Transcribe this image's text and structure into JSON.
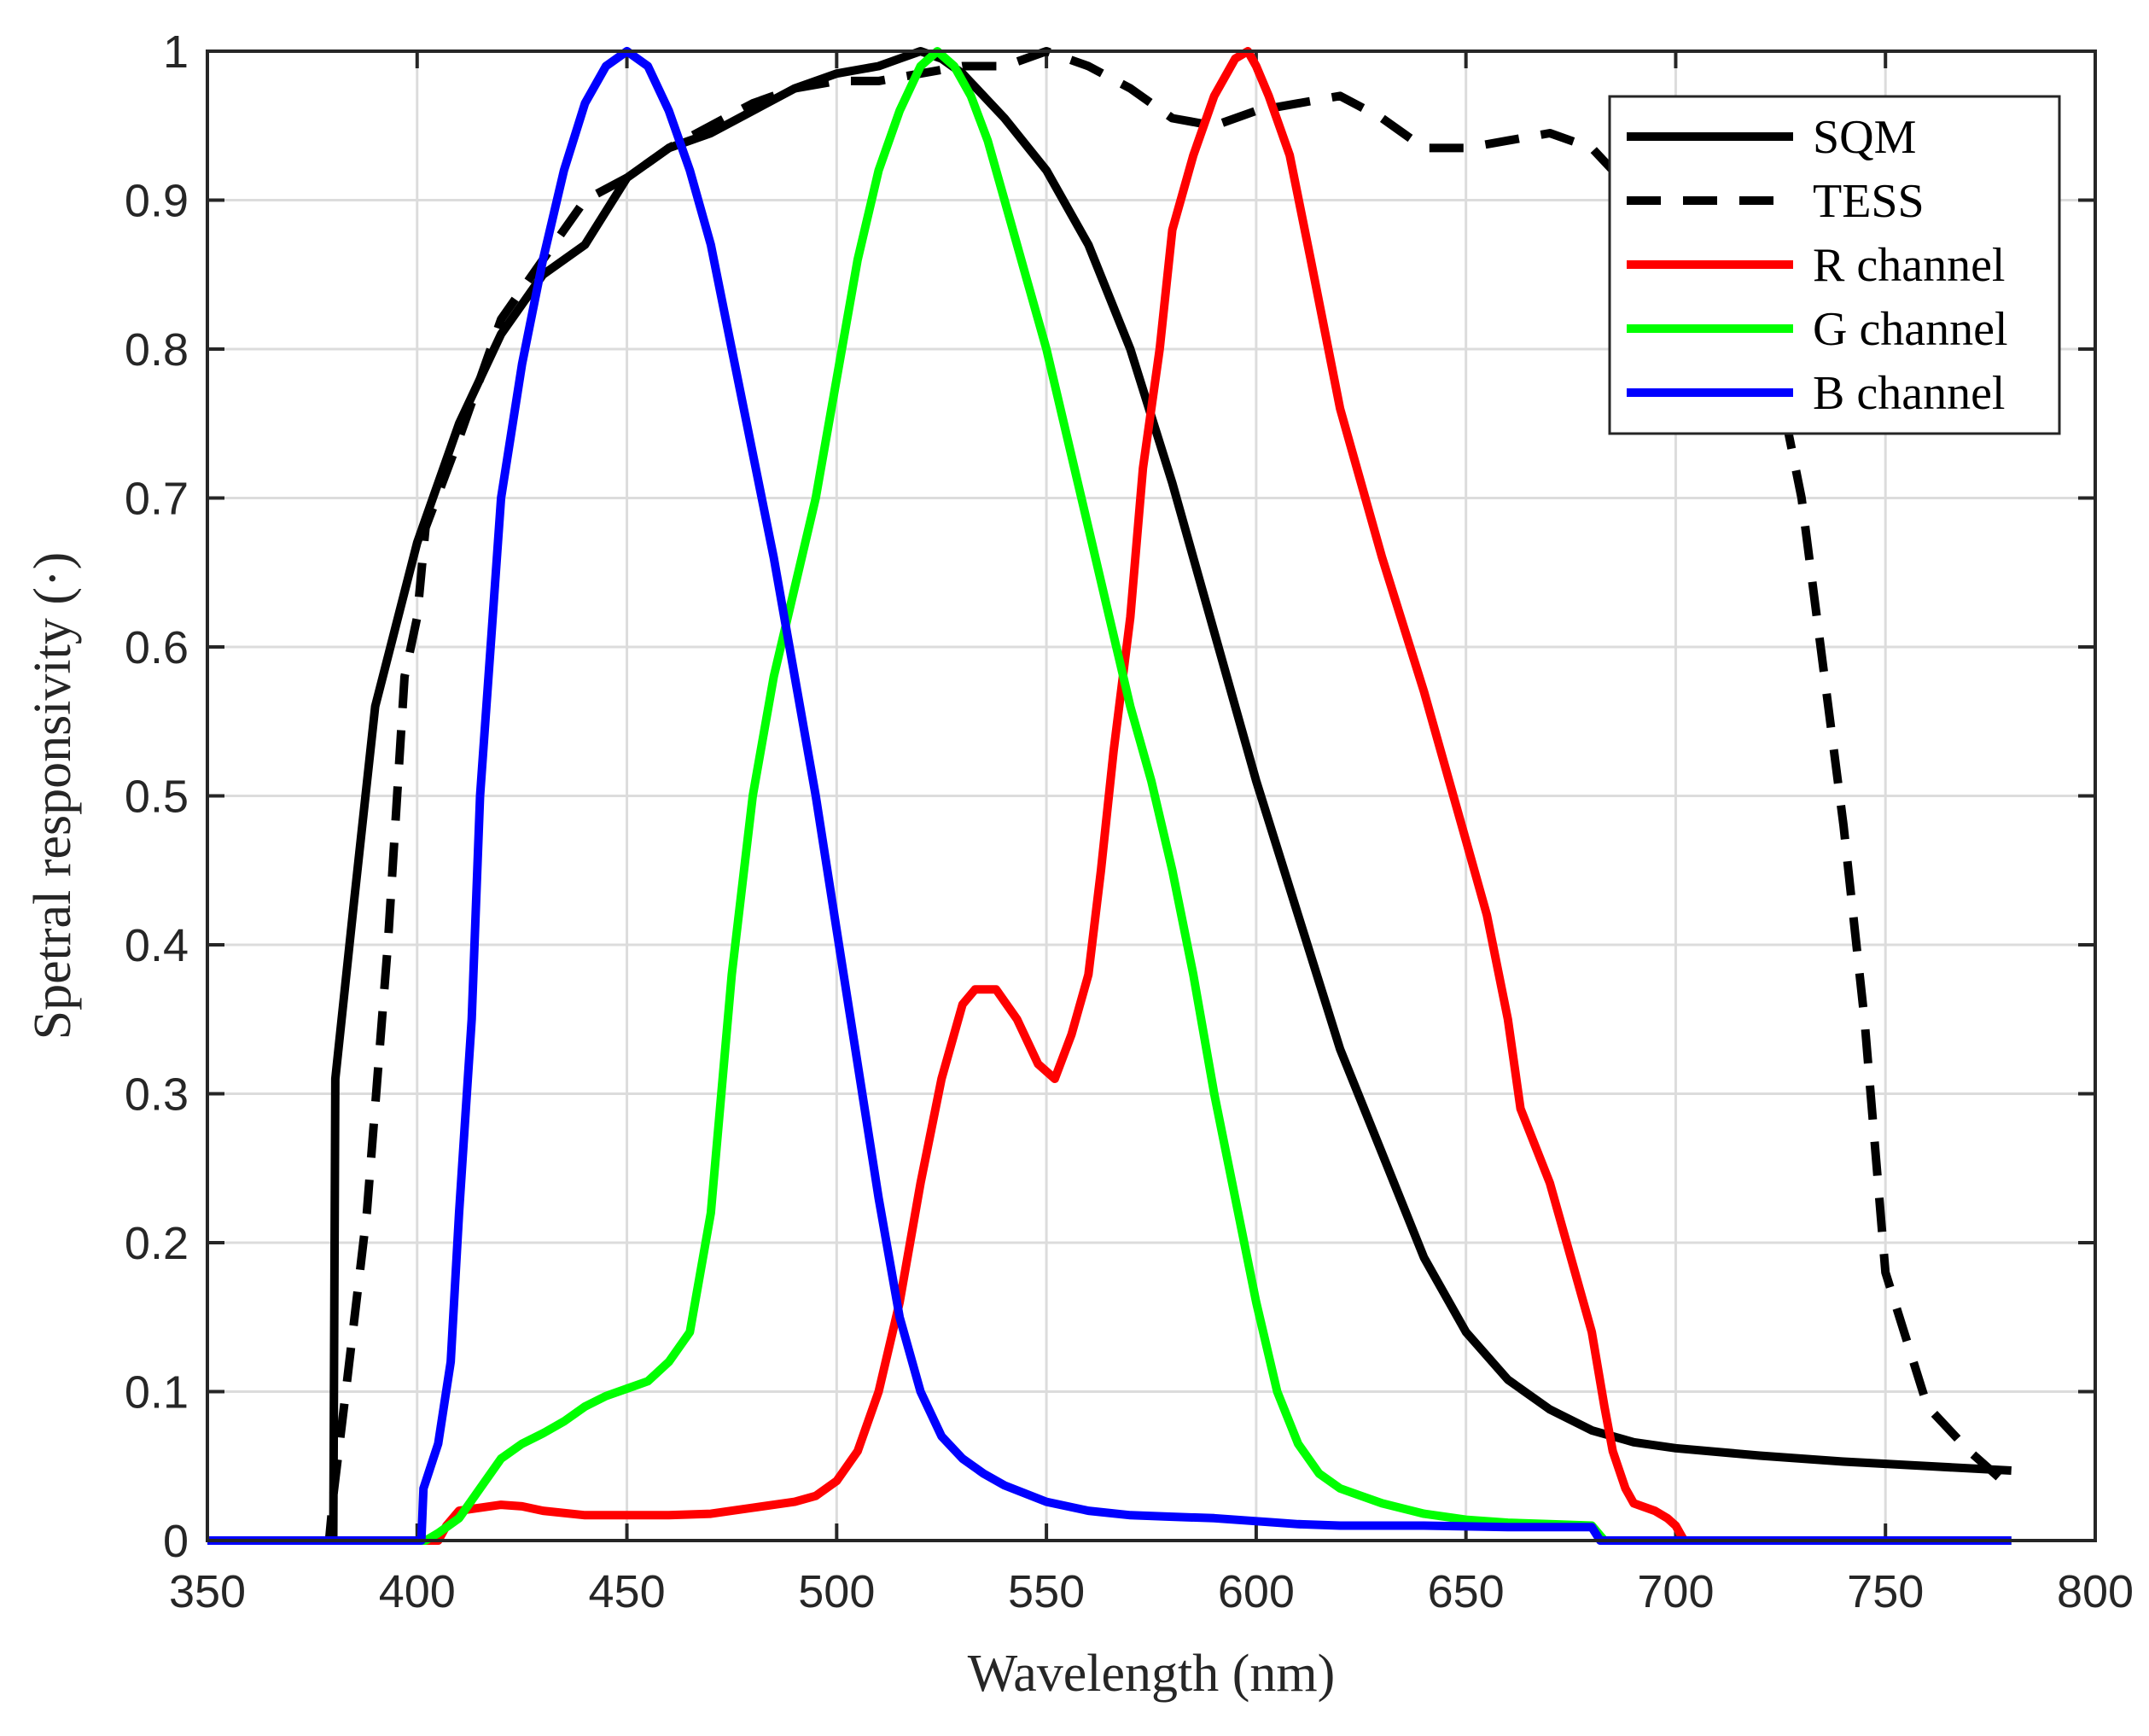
{
  "chart_data": {
    "type": "line",
    "title": "",
    "xlabel": "Wavelength (nm)",
    "ylabel": "Spetral responsivity (·)",
    "xlim": [
      350,
      800
    ],
    "ylim": [
      0,
      1
    ],
    "xticks": [
      350,
      400,
      450,
      500,
      550,
      600,
      650,
      700,
      750,
      800
    ],
    "yticks": [
      0,
      0.1,
      0.2,
      0.3,
      0.4,
      0.5,
      0.6,
      0.7,
      0.8,
      0.9,
      1
    ],
    "ytick_labels": [
      "0",
      "0.1",
      "0.2",
      "0.3",
      "0.4",
      "0.5",
      "0.6",
      "0.7",
      "0.8",
      "0.9",
      "1"
    ],
    "grid": true,
    "legend_position": "top-right",
    "series": [
      {
        "name": "SQM",
        "color": "#000000",
        "style": "solid",
        "x": [
          350,
          379,
          380,
          380.5,
          385,
          390,
          400,
          410,
          420,
          430,
          440,
          450,
          460,
          470,
          480,
          490,
          500,
          510,
          515,
          520,
          525,
          530,
          540,
          550,
          560,
          570,
          580,
          590,
          600,
          610,
          620,
          630,
          640,
          650,
          660,
          670,
          680,
          690,
          700,
          720,
          740,
          760,
          780
        ],
        "y": [
          0,
          0,
          0,
          0.31,
          0.43,
          0.56,
          0.67,
          0.75,
          0.81,
          0.85,
          0.87,
          0.915,
          0.935,
          0.945,
          0.96,
          0.975,
          0.985,
          0.99,
          0.995,
          1.0,
          0.995,
          0.985,
          0.955,
          0.92,
          0.87,
          0.8,
          0.71,
          0.61,
          0.51,
          0.42,
          0.33,
          0.26,
          0.19,
          0.14,
          0.108,
          0.088,
          0.074,
          0.066,
          0.062,
          0.057,
          0.053,
          0.05,
          0.047
        ]
      },
      {
        "name": "TESS",
        "color": "#000000",
        "style": "dashed",
        "x": [
          350,
          379,
          380,
          383,
          388,
          393,
          397,
          400,
          402,
          410,
          420,
          430,
          440,
          450,
          460,
          470,
          480,
          490,
          500,
          510,
          520,
          530,
          540,
          550,
          560,
          570,
          580,
          590,
          600,
          610,
          620,
          630,
          640,
          650,
          660,
          670,
          680,
          690,
          700,
          710,
          720,
          725,
          730,
          735,
          740,
          745,
          750,
          760,
          770,
          780
        ],
        "y": [
          0,
          0,
          0.03,
          0.1,
          0.22,
          0.4,
          0.58,
          0.62,
          0.68,
          0.74,
          0.82,
          0.86,
          0.9,
          0.915,
          0.935,
          0.95,
          0.965,
          0.975,
          0.98,
          0.98,
          0.985,
          0.99,
          0.99,
          1.0,
          0.99,
          0.975,
          0.955,
          0.95,
          0.96,
          0.965,
          0.97,
          0.955,
          0.935,
          0.935,
          0.94,
          0.945,
          0.935,
          0.905,
          0.89,
          0.86,
          0.81,
          0.77,
          0.7,
          0.59,
          0.48,
          0.35,
          0.18,
          0.09,
          0.06,
          0.035
        ]
      },
      {
        "name": "R channel",
        "color": "#ff0000",
        "style": "solid",
        "x": [
          350,
          405,
          407,
          410,
          415,
          420,
          425,
          430,
          440,
          450,
          460,
          470,
          475,
          480,
          490,
          495,
          500,
          505,
          510,
          515,
          520,
          525,
          530,
          533,
          538,
          543,
          548,
          552,
          556,
          560,
          563,
          566,
          570,
          573,
          577,
          580,
          585,
          590,
          595,
          598,
          600,
          603,
          608,
          613,
          620,
          630,
          640,
          650,
          655,
          660,
          663,
          670,
          675,
          680,
          683,
          685,
          688,
          690,
          695,
          698,
          700,
          702,
          780
        ],
        "y": [
          0,
          0,
          0.01,
          0.02,
          0.022,
          0.024,
          0.023,
          0.02,
          0.017,
          0.017,
          0.017,
          0.018,
          0.02,
          0.022,
          0.026,
          0.03,
          0.04,
          0.06,
          0.1,
          0.16,
          0.24,
          0.31,
          0.36,
          0.37,
          0.37,
          0.35,
          0.32,
          0.31,
          0.34,
          0.38,
          0.45,
          0.53,
          0.62,
          0.72,
          0.8,
          0.88,
          0.93,
          0.97,
          0.995,
          1.0,
          0.99,
          0.97,
          0.93,
          0.86,
          0.76,
          0.66,
          0.57,
          0.47,
          0.42,
          0.35,
          0.29,
          0.24,
          0.19,
          0.14,
          0.09,
          0.06,
          0.035,
          0.025,
          0.02,
          0.015,
          0.01,
          0,
          0
        ]
      },
      {
        "name": "G channel",
        "color": "#00ff00",
        "style": "solid",
        "x": [
          350,
          402,
          405,
          410,
          415,
          420,
          425,
          430,
          435,
          440,
          445,
          450,
          455,
          460,
          465,
          470,
          475,
          480,
          485,
          490,
          495,
          500,
          505,
          510,
          515,
          520,
          524,
          528,
          532,
          536,
          540,
          545,
          550,
          555,
          560,
          565,
          570,
          575,
          580,
          585,
          590,
          595,
          600,
          605,
          610,
          615,
          620,
          625,
          630,
          640,
          650,
          660,
          670,
          680,
          683,
          780
        ],
        "y": [
          0,
          0,
          0.005,
          0.015,
          0.035,
          0.055,
          0.065,
          0.072,
          0.08,
          0.09,
          0.097,
          0.102,
          0.107,
          0.12,
          0.14,
          0.22,
          0.38,
          0.5,
          0.58,
          0.64,
          0.7,
          0.78,
          0.86,
          0.92,
          0.96,
          0.99,
          1.0,
          0.99,
          0.97,
          0.94,
          0.9,
          0.85,
          0.8,
          0.74,
          0.68,
          0.62,
          0.56,
          0.51,
          0.45,
          0.38,
          0.3,
          0.23,
          0.16,
          0.1,
          0.065,
          0.045,
          0.035,
          0.03,
          0.025,
          0.018,
          0.014,
          0.012,
          0.011,
          0.01,
          0,
          0
        ]
      },
      {
        "name": "B channel",
        "color": "#0000ff",
        "style": "solid",
        "x": [
          350,
          401,
          401.5,
          405,
          408,
          410,
          413,
          415,
          418,
          420,
          425,
          430,
          435,
          440,
          445,
          450,
          455,
          460,
          465,
          470,
          475,
          480,
          485,
          490,
          495,
          500,
          505,
          510,
          515,
          520,
          525,
          530,
          535,
          540,
          550,
          560,
          570,
          580,
          590,
          600,
          610,
          620,
          640,
          660,
          680,
          682,
          780
        ],
        "y": [
          0,
          0,
          0.035,
          0.065,
          0.12,
          0.22,
          0.35,
          0.5,
          0.62,
          0.7,
          0.79,
          0.86,
          0.92,
          0.965,
          0.99,
          1.0,
          0.99,
          0.96,
          0.92,
          0.87,
          0.8,
          0.73,
          0.66,
          0.58,
          0.5,
          0.41,
          0.32,
          0.23,
          0.15,
          0.1,
          0.07,
          0.055,
          0.045,
          0.037,
          0.026,
          0.02,
          0.017,
          0.016,
          0.015,
          0.013,
          0.011,
          0.01,
          0.01,
          0.009,
          0.009,
          0,
          0
        ]
      }
    ]
  }
}
